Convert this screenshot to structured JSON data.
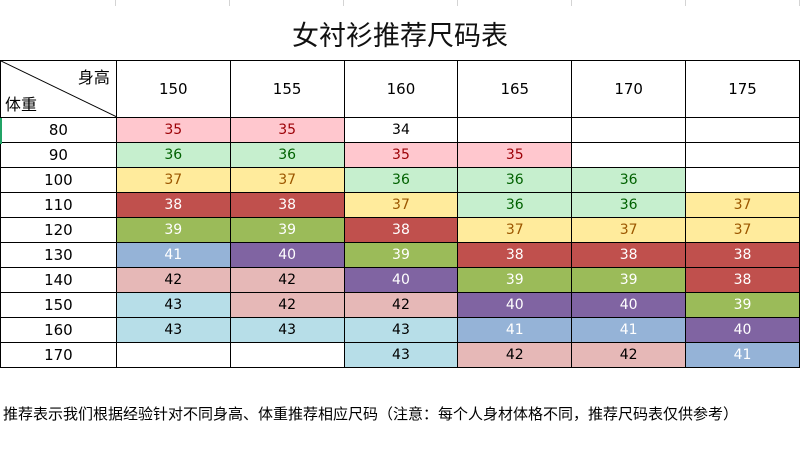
{
  "title": "女衬衫推荐尺码表",
  "corner_labels": {
    "height": "身高",
    "weight": "体重"
  },
  "heights": [
    "150",
    "155",
    "160",
    "165",
    "170",
    "175"
  ],
  "rows": [
    {
      "weight": "80",
      "cells": [
        "35",
        "35",
        "34",
        "",
        "",
        ""
      ]
    },
    {
      "weight": "90",
      "cells": [
        "36",
        "36",
        "35",
        "35",
        "",
        ""
      ]
    },
    {
      "weight": "100",
      "cells": [
        "37",
        "37",
        "36",
        "36",
        "36",
        ""
      ]
    },
    {
      "weight": "110",
      "cells": [
        "38",
        "38",
        "37",
        "36",
        "36",
        "37"
      ]
    },
    {
      "weight": "120",
      "cells": [
        "39",
        "39",
        "38",
        "37",
        "37",
        "37"
      ]
    },
    {
      "weight": "130",
      "cells": [
        "41",
        "40",
        "39",
        "38",
        "38",
        "38"
      ]
    },
    {
      "weight": "140",
      "cells": [
        "42",
        "42",
        "40",
        "39",
        "39",
        "38"
      ]
    },
    {
      "weight": "150",
      "cells": [
        "43",
        "42",
        "42",
        "40",
        "40",
        "39"
      ]
    },
    {
      "weight": "160",
      "cells": [
        "43",
        "43",
        "43",
        "41",
        "41",
        "40"
      ]
    },
    {
      "weight": "170",
      "cells": [
        "",
        "",
        "43",
        "42",
        "42",
        "41"
      ]
    }
  ],
  "size_colors": {
    "35": {
      "bg": "#ffc7ce",
      "fg": "#9c0006"
    },
    "36": {
      "bg": "#c6efce",
      "fg": "#006100"
    },
    "37": {
      "bg": "#ffeb9c",
      "fg": "#9c5700"
    },
    "38": {
      "bg": "#c0504d",
      "fg": "#ffffff"
    },
    "39": {
      "bg": "#9bbb59",
      "fg": "#ffffff"
    },
    "40": {
      "bg": "#8064a2",
      "fg": "#ffffff"
    },
    "41": {
      "bg": "#95b3d7",
      "fg": "#ffffff"
    },
    "42": {
      "bg": "#e6b8b7",
      "fg": "#000000"
    },
    "43": {
      "bg": "#b7dee8",
      "fg": "#000000"
    }
  },
  "note": "推荐表示我们根据经验针对不同身高、体重推荐相应尺码（注意：每个人身材体格不同，推荐尺码表仅供参考）"
}
